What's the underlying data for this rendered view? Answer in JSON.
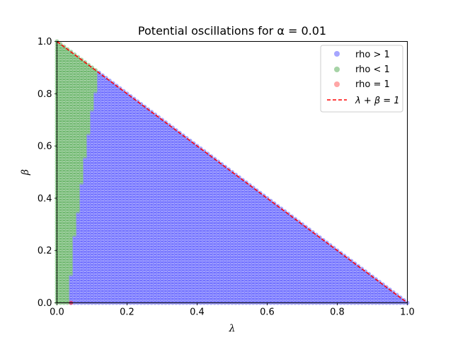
{
  "chart_data": {
    "type": "scatter",
    "title": "Potential oscillations for α = 0.01",
    "xlabel": "λ",
    "ylabel": "β",
    "xlim": [
      0,
      1
    ],
    "ylim": [
      0,
      1
    ],
    "xticks": [
      "0.0",
      "0.2",
      "0.4",
      "0.6",
      "0.8",
      "1.0"
    ],
    "yticks": [
      "0.0",
      "0.2",
      "0.4",
      "0.6",
      "0.8",
      "1.0"
    ],
    "grid": false,
    "legend_position": "top-right",
    "grid_step": 0.01,
    "region_constraint": "λ + β ≤ 1",
    "series": [
      {
        "name": "rho > 1",
        "color": "#0000ff",
        "region": "points with λ + β ≤ 1 to the right of the boundary curve"
      },
      {
        "name": "rho < 1",
        "color": "#008000",
        "region": "points with λ + β ≤ 1 to the left of the boundary curve"
      },
      {
        "name": "rho = 1",
        "color": "#ff0000",
        "points": [
          [
            0.04,
            0.0
          ]
        ]
      }
    ],
    "boundary_curve": {
      "beta": [
        0.0,
        0.06,
        0.1,
        0.2,
        0.3,
        0.4,
        0.5,
        0.6,
        0.7,
        0.8,
        0.88
      ],
      "lambda": [
        0.035,
        0.035,
        0.04,
        0.045,
        0.055,
        0.065,
        0.075,
        0.085,
        0.095,
        0.11,
        0.12
      ]
    },
    "line": {
      "name": "λ + β = 1",
      "color": "#ff0000",
      "style": "dashed",
      "x": [
        0,
        1
      ],
      "y": [
        1,
        0
      ]
    }
  }
}
